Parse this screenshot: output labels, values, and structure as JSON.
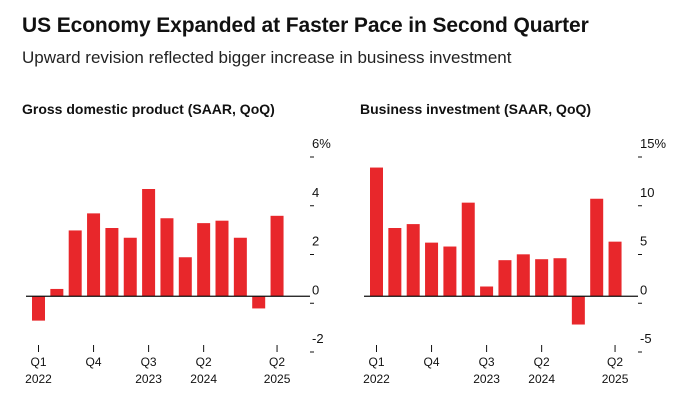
{
  "header": {
    "title": "US Economy Expanded at Faster Pace in Second Quarter",
    "subtitle": "Upward revision reflected bigger increase in business investment"
  },
  "colors": {
    "bar": "#e8272b",
    "axis": "#111111"
  },
  "chart_data": [
    {
      "type": "bar",
      "title": "Gross domestic product (SAAR, QoQ)",
      "categories": [
        "Q1 2022",
        "Q2 2022",
        "Q3 2022",
        "Q4 2022",
        "Q1 2023",
        "Q2 2023",
        "Q3 2023",
        "Q4 2023",
        "Q1 2024",
        "Q2 2024",
        "Q3 2024",
        "Q4 2024",
        "Q1 2025",
        "Q2 2025"
      ],
      "values": [
        -1.0,
        0.3,
        2.7,
        3.4,
        2.8,
        2.4,
        4.4,
        3.2,
        1.6,
        3.0,
        3.1,
        2.4,
        -0.5,
        3.3
      ],
      "ylim": [
        -2,
        6
      ],
      "yticks": [
        6,
        4,
        2,
        0,
        -2
      ],
      "ytick_labels": [
        "6%",
        "4",
        "2",
        "0",
        "-2"
      ],
      "xtick_labels": [
        {
          "index": 0,
          "line1": "Q1",
          "line2": "2022"
        },
        {
          "index": 3,
          "line1": "Q4",
          "line2": ""
        },
        {
          "index": 6,
          "line1": "Q3",
          "line2": "2023"
        },
        {
          "index": 9,
          "line1": "Q2",
          "line2": "2024"
        },
        {
          "index": 13,
          "line1": "Q2",
          "line2": "2025"
        }
      ],
      "grid": false
    },
    {
      "type": "bar",
      "title": "Business investment (SAAR, QoQ)",
      "categories": [
        "Q1 2022",
        "Q2 2022",
        "Q3 2022",
        "Q4 2022",
        "Q1 2023",
        "Q2 2023",
        "Q3 2023",
        "Q4 2023",
        "Q1 2024",
        "Q2 2024",
        "Q3 2024",
        "Q4 2024",
        "Q1 2025",
        "Q2 2025"
      ],
      "values": [
        13.2,
        7.0,
        7.4,
        5.5,
        5.1,
        9.6,
        1.0,
        3.7,
        4.3,
        3.8,
        3.9,
        -2.9,
        10.0,
        5.6
      ],
      "ylim": [
        -5,
        15
      ],
      "yticks": [
        15,
        10,
        5,
        0,
        -5
      ],
      "ytick_labels": [
        "15%",
        "10",
        "5",
        "0",
        "-5"
      ],
      "xtick_labels": [
        {
          "index": 0,
          "line1": "Q1",
          "line2": "2022"
        },
        {
          "index": 3,
          "line1": "Q4",
          "line2": ""
        },
        {
          "index": 6,
          "line1": "Q3",
          "line2": "2023"
        },
        {
          "index": 9,
          "line1": "Q2",
          "line2": "2024"
        },
        {
          "index": 13,
          "line1": "Q2",
          "line2": "2025"
        }
      ],
      "grid": false
    }
  ]
}
